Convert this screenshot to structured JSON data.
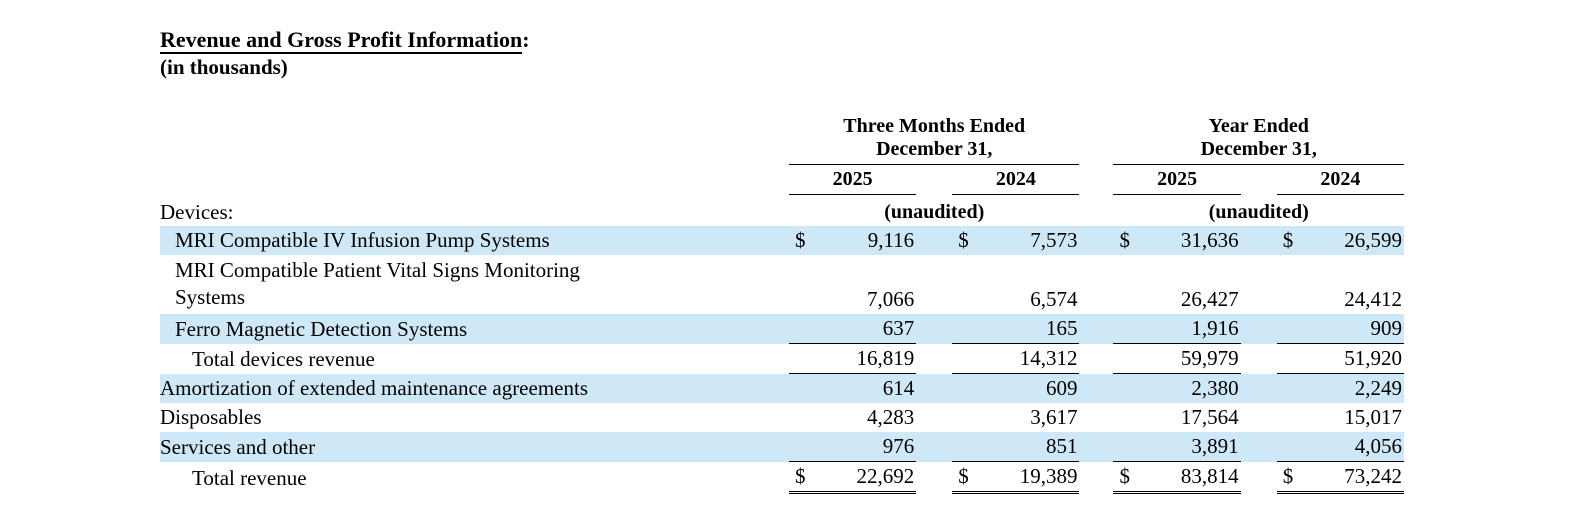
{
  "title": "Revenue and Gross Profit Information",
  "title_colon": ":",
  "subtitle": "(in thousands)",
  "table": {
    "dollar_symbol": "$",
    "highlight_color": "#cee8f7",
    "col_groups": [
      {
        "line1": "Three Months Ended",
        "line2": "December 31,"
      },
      {
        "line1": "Year Ended",
        "line2": "December 31,"
      }
    ],
    "year_headers": [
      "2025",
      "2024",
      "2025",
      "2024"
    ],
    "section_label": "Devices:",
    "unaudited": "(unaudited)",
    "rows": [
      {
        "label": "MRI Compatible IV Infusion Pump Systems",
        "indent": 1,
        "highlight": true,
        "dollar": true,
        "rule_below": "none",
        "values": [
          "9,116",
          "7,573",
          "31,636",
          "26,599"
        ]
      },
      {
        "label": [
          "MRI Compatible Patient Vital Signs Monitoring",
          "Systems"
        ],
        "indent": 1,
        "highlight": false,
        "dollar": false,
        "rule_below": "none",
        "values": [
          "7,066",
          "6,574",
          "26,427",
          "24,412"
        ]
      },
      {
        "label": "Ferro Magnetic Detection Systems",
        "indent": 1,
        "highlight": true,
        "dollar": false,
        "rule_below": "single",
        "values": [
          "637",
          "165",
          "1,916",
          "909"
        ]
      },
      {
        "label": "Total devices revenue",
        "indent": 2,
        "highlight": false,
        "dollar": false,
        "rule_below": "single",
        "values": [
          "16,819",
          "14,312",
          "59,979",
          "51,920"
        ]
      },
      {
        "label": "Amortization of extended maintenance agreements",
        "indent": 0,
        "highlight": true,
        "dollar": false,
        "rule_below": "none",
        "values": [
          "614",
          "609",
          "2,380",
          "2,249"
        ]
      },
      {
        "label": "Disposables",
        "indent": 0,
        "highlight": false,
        "dollar": false,
        "rule_below": "none",
        "values": [
          "4,283",
          "3,617",
          "17,564",
          "15,017"
        ]
      },
      {
        "label": "Services and other",
        "indent": 0,
        "highlight": true,
        "dollar": false,
        "rule_below": "single",
        "values": [
          "976",
          "851",
          "3,891",
          "4,056"
        ]
      },
      {
        "label": "Total revenue",
        "indent": 2,
        "highlight": false,
        "dollar": true,
        "rule_below": "double",
        "values": [
          "22,692",
          "19,389",
          "83,814",
          "73,242"
        ]
      }
    ]
  }
}
